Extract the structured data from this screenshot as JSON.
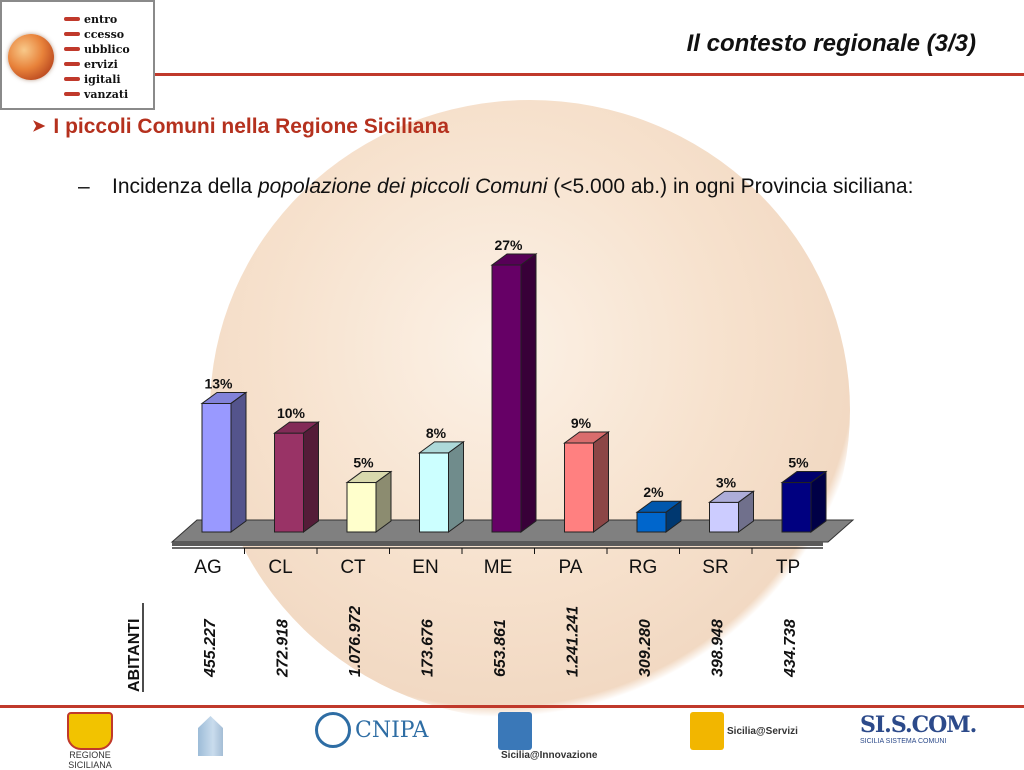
{
  "header": {
    "logo_words": [
      "entro",
      "ccesso",
      "ubblico",
      "ervizi",
      "igitali",
      "vanzati"
    ],
    "title": "Il contesto regionale (3/3)"
  },
  "content": {
    "bullet": "I piccoli Comuni nella Regione Siciliana",
    "sub_dash": "–",
    "sub_prefix": "Incidenza della ",
    "sub_italic": "popolazione dei piccoli Comuni",
    "sub_suffix": " (<5.000 ab.) in ogni Provincia siciliana:"
  },
  "chart_data": {
    "type": "bar",
    "categories": [
      "AG",
      "CL",
      "CT",
      "EN",
      "ME",
      "PA",
      "RG",
      "SR",
      "TP"
    ],
    "values": [
      13,
      10,
      5,
      8,
      27,
      9,
      2,
      3,
      5
    ],
    "value_labels": [
      "13%",
      "10%",
      "5%",
      "8%",
      "27%",
      "9%",
      "2%",
      "3%",
      "5%"
    ],
    "bar_colors": [
      "#9999ff",
      "#993366",
      "#ffffcc",
      "#ccffff",
      "#660066",
      "#ff8080",
      "#0066cc",
      "#ccccff",
      "#000080"
    ],
    "ylim": [
      0,
      27
    ],
    "grid": false,
    "legend": "none",
    "row_label": "ABITANTI",
    "abitanti": [
      "455.227",
      "272.918",
      "1.076.972",
      "173.676",
      "653.861",
      "1.241.241",
      "309.280",
      "398.948",
      "434.738"
    ]
  },
  "footer": {
    "logos": [
      {
        "name": "regione-siciliana",
        "label": "REGIONE SICILIANA"
      },
      {
        "name": "building",
        "label": ""
      },
      {
        "name": "cnipa",
        "label": "CNIPA"
      },
      {
        "name": "sicilia-innovazione",
        "label": "Sicilia@Innovazione"
      },
      {
        "name": "sicilia-servizi",
        "label": "Sicilia@Servizi"
      },
      {
        "name": "siscom",
        "label": "SI.S.COM.",
        "sub": "SICILIA SISTEMA COMUNI"
      }
    ]
  }
}
